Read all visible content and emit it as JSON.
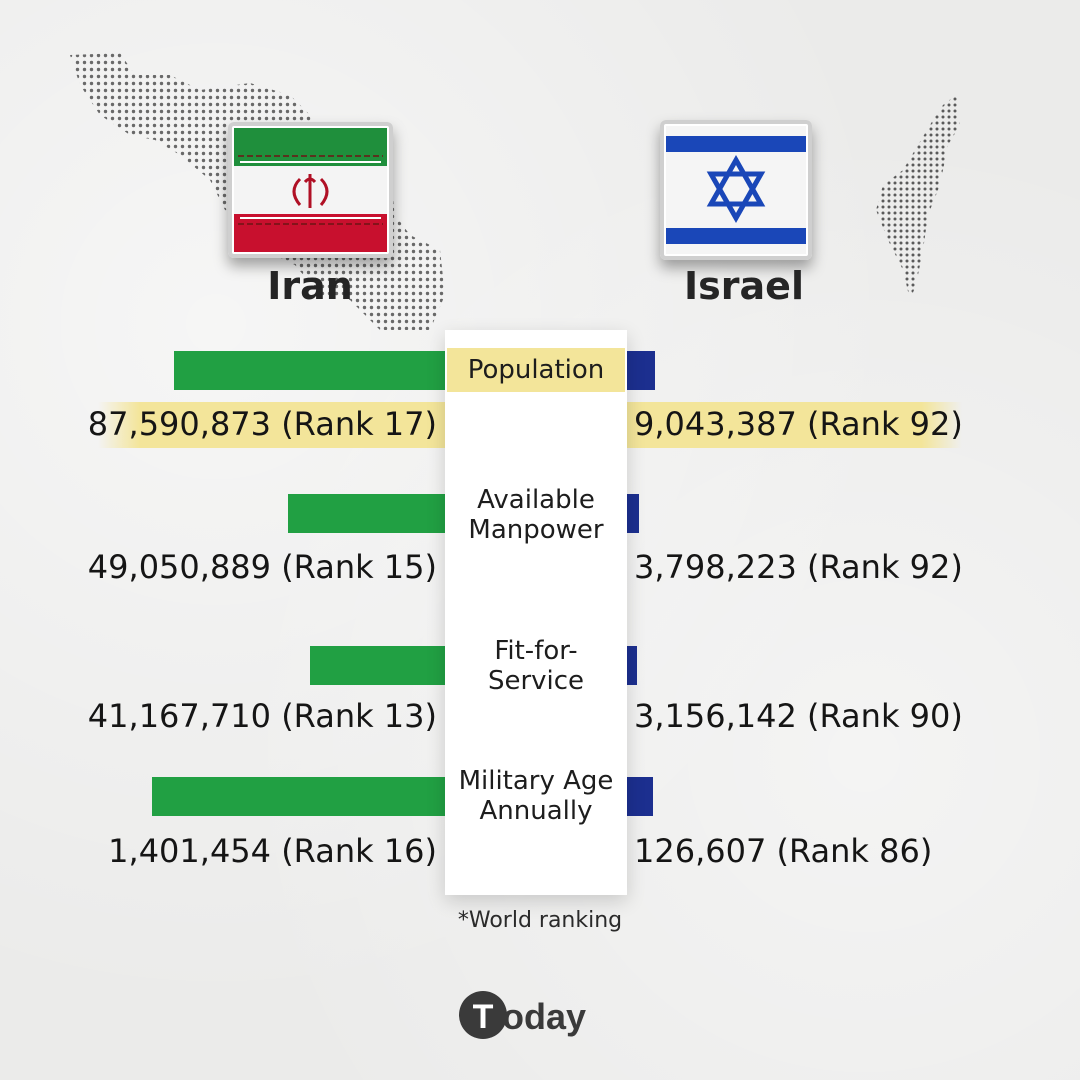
{
  "countries": {
    "left": "Iran",
    "right": "Israel"
  },
  "colors": {
    "iran_bar": "#21a043",
    "israel_bar": "#1c2f8f",
    "highlight": "#f3e59a",
    "panel": "#ffffff"
  },
  "chart_data": {
    "type": "bar",
    "orientation": "horizontal-diverging",
    "categories": [
      "Population",
      "Available Manpower",
      "Fit-for- Service",
      "Military Age Annually"
    ],
    "series": [
      {
        "name": "Iran",
        "values": [
          87590873,
          49050889,
          41167710,
          1401454
        ],
        "labels": [
          "87,590,873 (Rank 17)",
          "49,050,889 (Rank 15)",
          "41,167,710 (Rank 13)",
          "1,401,454 (Rank 16)"
        ],
        "ranks": [
          17,
          15,
          13,
          16
        ]
      },
      {
        "name": "Israel",
        "values": [
          9043387,
          3798223,
          3156142,
          126607
        ],
        "labels": [
          "9,043,387 (Rank 92)",
          "3,798,223 (Rank 92)",
          "3,156,142 (Rank 90)",
          "126,607 (Rank 86)"
        ],
        "ranks": [
          92,
          92,
          90,
          86
        ]
      }
    ],
    "category_lines": [
      [
        "Population"
      ],
      [
        "Available",
        "Manpower"
      ],
      [
        "Fit-for-",
        "Service"
      ],
      [
        "Military Age",
        "Annually"
      ]
    ],
    "highlighted_category": "Population",
    "note": "bars within each category are scaled independently per metric"
  },
  "footnote": "*World ranking",
  "brand": {
    "name": "Today",
    "logo_glyph": "T"
  }
}
